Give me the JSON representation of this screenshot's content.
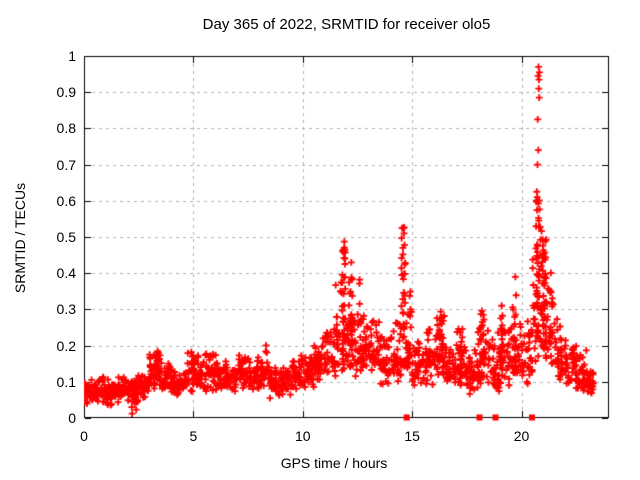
{
  "title": "Day 365 of 2022, SRMTID for receiver olo5",
  "axis_labels": {
    "x": "GPS time / hours",
    "y": "SRMTID / TECUs"
  },
  "colors": {
    "marker": "#ff0000",
    "grid": "#b4b4b4",
    "frame": "#000000",
    "text": "#000000",
    "background": "#ffffff"
  },
  "chart_data": {
    "type": "scatter",
    "title": "Day 365 of 2022, SRMTID for receiver olo5",
    "xlabel": "GPS time / hours",
    "ylabel": "SRMTID / TECUs",
    "xlim": [
      0,
      24
    ],
    "ylim": [
      0,
      1
    ],
    "x_ticks": {
      "values": [
        0,
        5,
        10,
        15,
        20
      ],
      "labels": [
        "0",
        "5",
        "10",
        "15",
        "20"
      ]
    },
    "y_ticks": {
      "values": [
        0,
        0.1,
        0.2,
        0.3,
        0.4,
        0.5,
        0.6,
        0.7,
        0.8,
        0.9,
        1
      ],
      "labels": [
        "0",
        "0.1",
        "0.2",
        "0.3",
        "0.4",
        "0.5",
        "0.6",
        "0.7",
        "0.8",
        "0.9",
        "1"
      ]
    },
    "grid": "dashed",
    "legend": "none",
    "marker": "plus",
    "series": [
      {
        "name": "SRMTID",
        "summary_bands": [
          [
            0.0,
            0.5,
            0.03,
            0.11,
            0.07,
            40
          ],
          [
            0.5,
            1.0,
            0.04,
            0.12,
            0.075,
            40
          ],
          [
            1.0,
            1.5,
            0.03,
            0.11,
            0.07,
            40
          ],
          [
            1.5,
            2.0,
            0.04,
            0.12,
            0.08,
            40
          ],
          [
            2.0,
            2.5,
            0.02,
            0.12,
            0.07,
            40
          ],
          [
            2.5,
            3.0,
            0.05,
            0.13,
            0.09,
            40
          ],
          [
            3.0,
            3.5,
            0.07,
            0.19,
            0.13,
            40
          ],
          [
            3.5,
            4.0,
            0.06,
            0.17,
            0.11,
            35
          ],
          [
            4.0,
            4.5,
            0.05,
            0.13,
            0.09,
            35
          ],
          [
            4.5,
            5.0,
            0.06,
            0.2,
            0.11,
            35
          ],
          [
            5.0,
            5.5,
            0.07,
            0.18,
            0.12,
            35
          ],
          [
            5.5,
            6.0,
            0.07,
            0.21,
            0.13,
            35
          ],
          [
            6.0,
            6.5,
            0.07,
            0.19,
            0.12,
            35
          ],
          [
            6.5,
            7.0,
            0.06,
            0.16,
            0.11,
            35
          ],
          [
            7.0,
            7.5,
            0.07,
            0.21,
            0.13,
            35
          ],
          [
            7.5,
            8.0,
            0.07,
            0.18,
            0.12,
            35
          ],
          [
            8.0,
            8.5,
            0.07,
            0.21,
            0.13,
            35
          ],
          [
            8.5,
            9.0,
            0.05,
            0.14,
            0.09,
            35
          ],
          [
            9.0,
            9.5,
            0.06,
            0.15,
            0.1,
            35
          ],
          [
            9.5,
            10.0,
            0.07,
            0.18,
            0.12,
            35
          ],
          [
            10.0,
            10.5,
            0.08,
            0.2,
            0.13,
            35
          ],
          [
            10.5,
            11.0,
            0.09,
            0.23,
            0.15,
            35
          ],
          [
            11.0,
            11.5,
            0.1,
            0.28,
            0.17,
            35
          ],
          [
            11.5,
            12.0,
            0.12,
            0.42,
            0.22,
            35
          ],
          [
            12.0,
            12.5,
            0.11,
            0.38,
            0.2,
            35
          ],
          [
            12.5,
            13.0,
            0.1,
            0.3,
            0.17,
            35
          ],
          [
            13.0,
            13.5,
            0.1,
            0.3,
            0.18,
            35
          ],
          [
            13.5,
            14.0,
            0.08,
            0.26,
            0.15,
            35
          ],
          [
            14.0,
            14.5,
            0.09,
            0.33,
            0.17,
            35
          ],
          [
            14.5,
            15.0,
            0.1,
            0.45,
            0.22,
            35
          ],
          [
            15.0,
            15.5,
            0.08,
            0.22,
            0.14,
            35
          ],
          [
            15.5,
            16.0,
            0.08,
            0.28,
            0.16,
            35
          ],
          [
            16.0,
            16.5,
            0.09,
            0.3,
            0.17,
            35
          ],
          [
            16.5,
            17.0,
            0.07,
            0.22,
            0.13,
            35
          ],
          [
            17.0,
            17.5,
            0.08,
            0.26,
            0.15,
            35
          ],
          [
            17.5,
            18.0,
            0.06,
            0.2,
            0.12,
            35
          ],
          [
            18.0,
            18.5,
            0.07,
            0.28,
            0.15,
            35
          ],
          [
            18.5,
            19.0,
            0.06,
            0.25,
            0.13,
            35
          ],
          [
            19.0,
            19.5,
            0.08,
            0.3,
            0.16,
            35
          ],
          [
            19.5,
            20.0,
            0.08,
            0.35,
            0.17,
            35
          ],
          [
            20.0,
            20.5,
            0.09,
            0.3,
            0.16,
            35
          ],
          [
            20.5,
            21.0,
            0.13,
            0.55,
            0.3,
            40
          ],
          [
            21.0,
            21.5,
            0.13,
            0.45,
            0.27,
            40
          ],
          [
            21.5,
            22.0,
            0.09,
            0.28,
            0.16,
            35
          ],
          [
            22.0,
            22.5,
            0.08,
            0.22,
            0.13,
            35
          ],
          [
            22.5,
            23.0,
            0.07,
            0.2,
            0.11,
            35
          ],
          [
            23.0,
            23.3,
            0.06,
            0.15,
            0.1,
            25
          ]
        ],
        "spike_columns": [
          [
            3.35,
            0.09,
            0.19,
            10
          ],
          [
            11.85,
            0.14,
            0.49,
            26
          ],
          [
            12.2,
            0.14,
            0.43,
            16
          ],
          [
            12.6,
            0.12,
            0.38,
            8
          ],
          [
            14.6,
            0.14,
            0.53,
            22
          ],
          [
            16.35,
            0.11,
            0.3,
            14
          ],
          [
            17.2,
            0.1,
            0.26,
            10
          ],
          [
            18.2,
            0.09,
            0.3,
            14
          ],
          [
            19.1,
            0.09,
            0.35,
            12
          ],
          [
            19.7,
            0.11,
            0.39,
            12
          ],
          [
            20.75,
            0.18,
            0.62,
            30
          ],
          [
            21.05,
            0.15,
            0.5,
            26
          ]
        ],
        "outlier_points": [
          [
            20.78,
            0.97
          ],
          [
            20.82,
            0.955
          ],
          [
            20.76,
            0.945
          ],
          [
            20.8,
            0.935
          ],
          [
            20.79,
            0.91
          ],
          [
            20.81,
            0.885
          ],
          [
            20.74,
            0.825
          ],
          [
            20.77,
            0.74
          ],
          [
            20.73,
            0.7
          ],
          [
            20.7,
            0.625
          ],
          [
            20.72,
            0.61
          ],
          [
            20.68,
            0.598
          ],
          [
            14.6,
            0.525
          ],
          [
            14.63,
            0.51
          ],
          [
            14.58,
            0.47
          ],
          [
            11.9,
            0.487
          ],
          [
            11.87,
            0.465
          ],
          [
            11.93,
            0.44
          ],
          [
            12.22,
            0.43
          ],
          [
            12.6,
            0.382
          ],
          [
            19.72,
            0.39
          ],
          [
            2.2,
            0.012
          ],
          [
            2.18,
            0.03
          ],
          [
            2.22,
            0.045
          ]
        ]
      }
    ],
    "axis_squares": {
      "shape": "filled-square",
      "y": 0,
      "x_values": [
        14.75,
        18.08,
        18.81,
        20.48
      ]
    }
  }
}
